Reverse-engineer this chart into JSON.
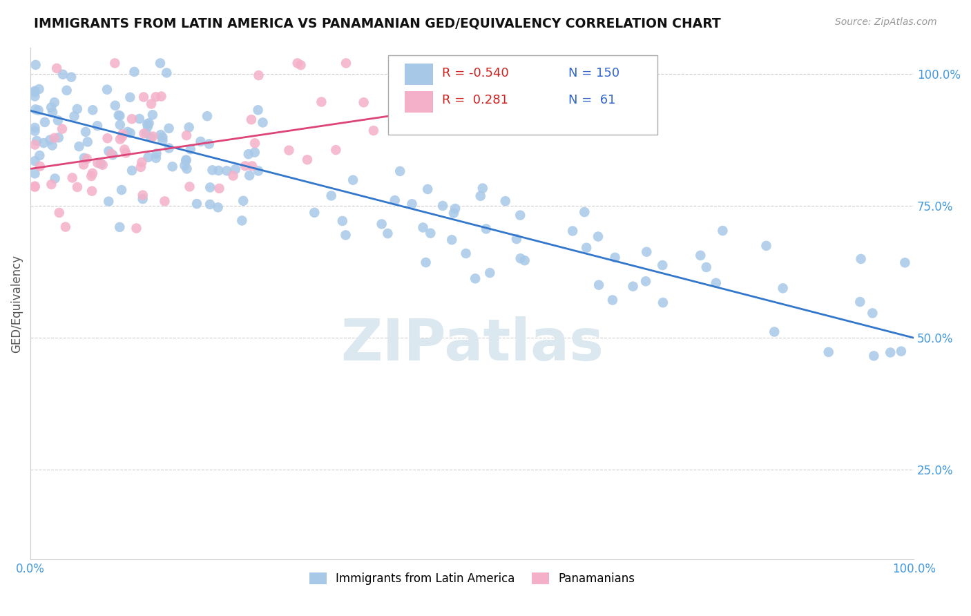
{
  "title": "IMMIGRANTS FROM LATIN AMERICA VS PANAMANIAN GED/EQUIVALENCY CORRELATION CHART",
  "source": "Source: ZipAtlas.com",
  "ylabel": "GED/Equivalency",
  "xlim": [
    0,
    1
  ],
  "ylim": [
    0.08,
    1.05
  ],
  "y_tick_positions": [
    0.25,
    0.5,
    0.75,
    1.0
  ],
  "y_tick_labels": [
    "25.0%",
    "50.0%",
    "75.0%",
    "100.0%"
  ],
  "x_tick_labels": [
    "0.0%",
    "100.0%"
  ],
  "blue_color": "#a8c8e8",
  "pink_color": "#f4b0c8",
  "blue_line_color": "#3377cc",
  "pink_line_color": "#dd4477",
  "legend_R_blue": "-0.540",
  "legend_N_blue": "150",
  "legend_R_pink": "0.281",
  "legend_N_pink": "61",
  "blue_trend_x0": 0.0,
  "blue_trend_y0": 0.93,
  "blue_trend_x1": 1.0,
  "blue_trend_y1": 0.5,
  "pink_trend_x0": 0.0,
  "pink_trend_y0": 0.82,
  "pink_trend_x1": 0.65,
  "pink_trend_y1": 0.98,
  "background_color": "#ffffff",
  "grid_color": "#cccccc",
  "watermark_color": "#dce8f0"
}
